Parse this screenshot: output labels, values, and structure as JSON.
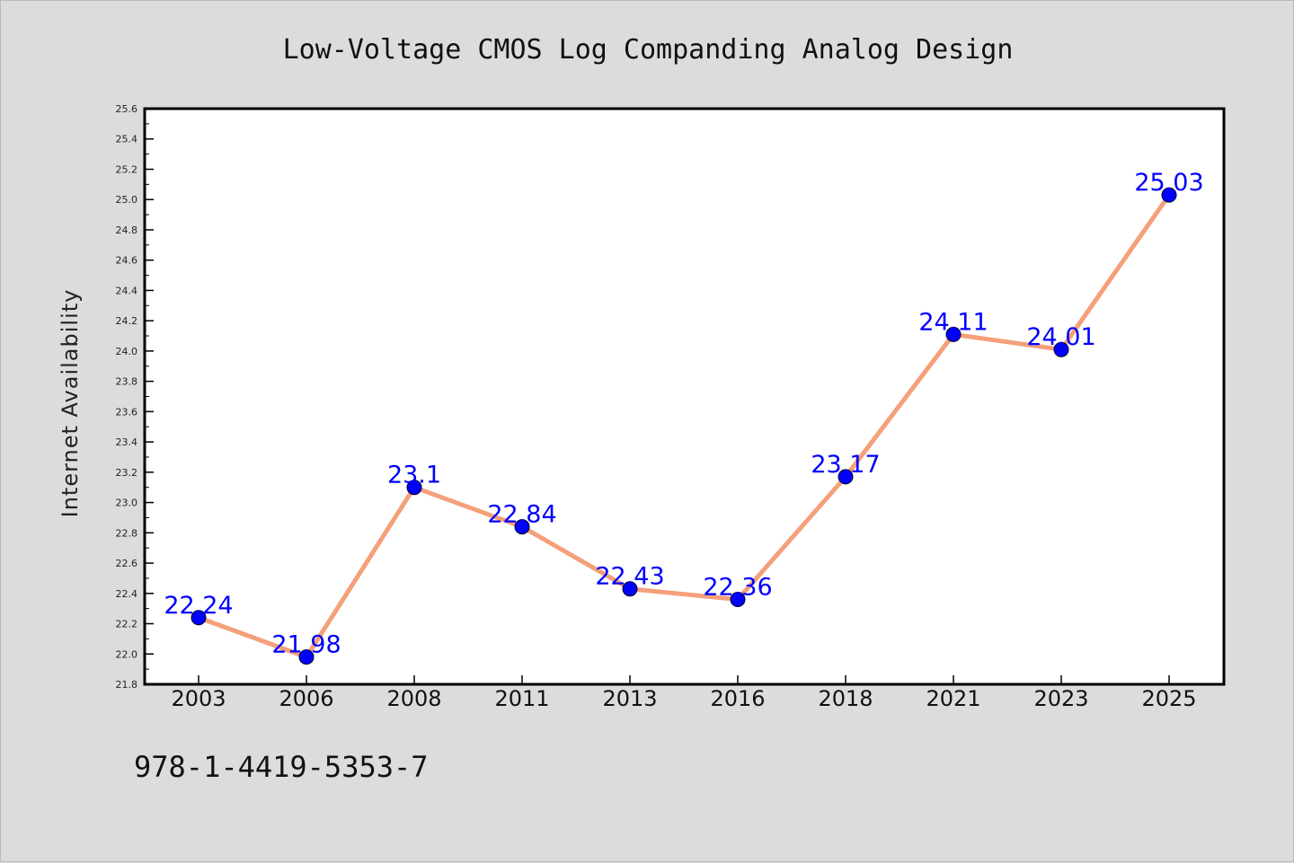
{
  "chart_data": {
    "type": "line",
    "title": "Low-Voltage CMOS Log Companding Analog Design",
    "xlabel": "",
    "ylabel": "Internet Availability",
    "categories": [
      "2003",
      "2006",
      "2008",
      "2011",
      "2013",
      "2016",
      "2018",
      "2021",
      "2023",
      "2025"
    ],
    "series": [
      {
        "values": [
          22.24,
          21.98,
          23.1,
          22.84,
          22.43,
          22.36,
          23.17,
          24.11,
          24.01,
          25.03
        ],
        "data_labels": [
          "22.24",
          "21.98",
          "23.1",
          "22.84",
          "22.43",
          "22.36",
          "23.17",
          "24.11",
          "24.01",
          "25.03"
        ],
        "line_color": "#f4a07a",
        "marker_color": "#0000ff"
      }
    ],
    "ylim": [
      21.8,
      25.6
    ],
    "yticks": [
      "21.8",
      "22.0",
      "22.2",
      "22.4",
      "22.6",
      "22.8",
      "23.0",
      "23.2",
      "23.4",
      "23.6",
      "23.8",
      "24.0",
      "24.2",
      "24.4",
      "24.6",
      "24.8",
      "25.0",
      "25.2",
      "25.4",
      "25.6"
    ],
    "grid": false,
    "legend": "none"
  },
  "footer": {
    "text": "978-1-4419-5353-7"
  },
  "colors": {
    "background": "#dcdcdc",
    "plot_background": "#ffffff",
    "axis": "#000000"
  }
}
